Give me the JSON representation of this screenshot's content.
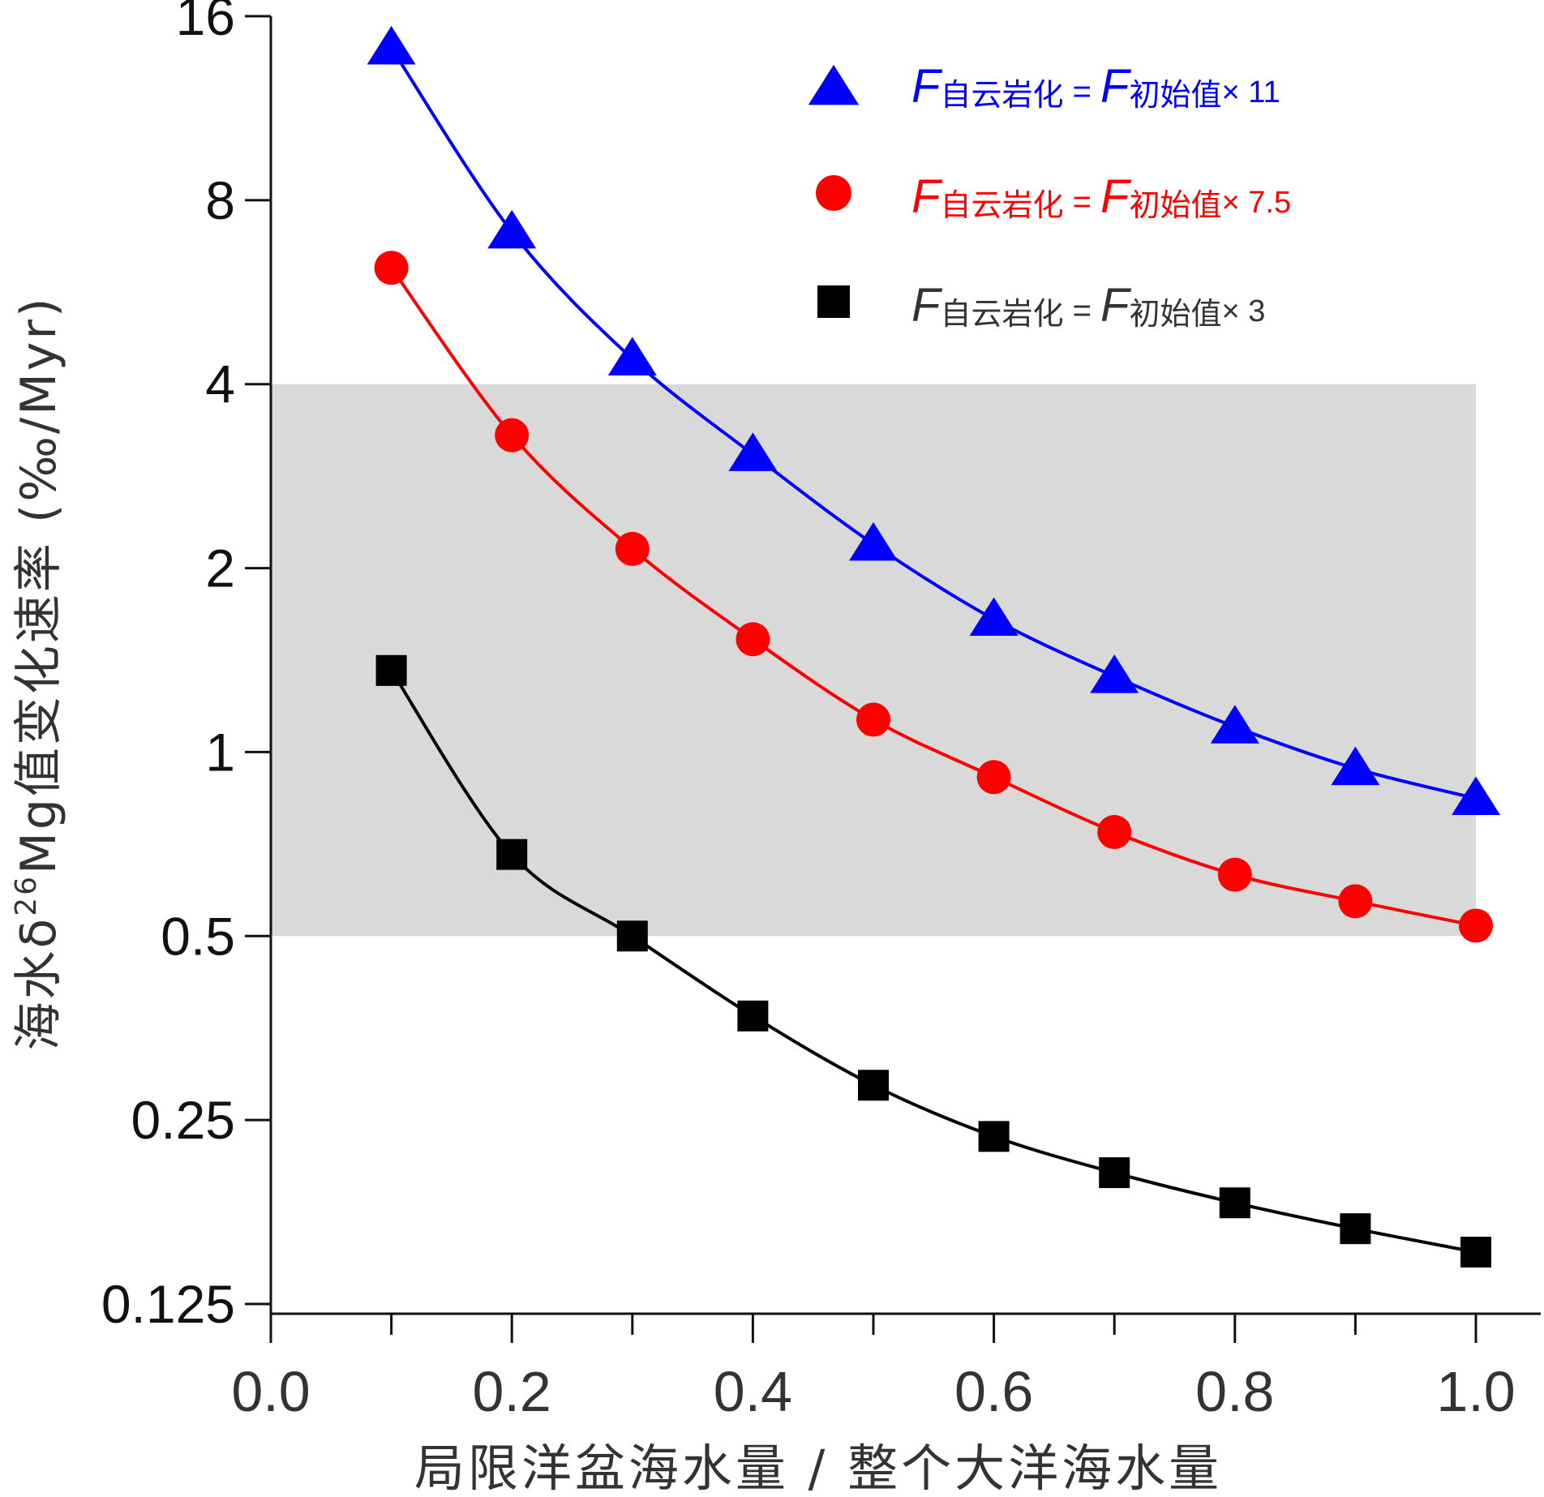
{
  "chart_data": {
    "type": "line",
    "title": "",
    "xlabel": "局限洋盆海水量 / 整个大洋海水量",
    "ylabel": {
      "prefix": "海水δ",
      "superscript": "26",
      "suffix": "Mg值变化速率 (‰/Myr)"
    },
    "x_scale": "linear",
    "y_scale": "log2",
    "xlim": [
      0.0,
      1.07
    ],
    "ylim": [
      0.125,
      16
    ],
    "x_ticks": [
      "0.0",
      "0.2",
      "0.4",
      "0.6",
      "0.8",
      "1.0"
    ],
    "x_tick_values": [
      0.0,
      0.2,
      0.4,
      0.6,
      0.8,
      1.0
    ],
    "y_ticks": [
      "0.125",
      "0.25",
      "0.5",
      "1",
      "2",
      "4",
      "8",
      "16"
    ],
    "y_tick_values": [
      0.125,
      0.25,
      0.5,
      1,
      2,
      4,
      8,
      16
    ],
    "shaded_band": {
      "y_range": [
        0.5,
        4
      ],
      "x_range": [
        0.0,
        1.0
      ],
      "color": "#d9d9d9"
    },
    "legend_position": "top-right",
    "x": [
      0.1,
      0.2,
      0.3,
      0.4,
      0.5,
      0.6,
      0.7,
      0.8,
      0.9,
      1.0
    ],
    "series": [
      {
        "key": "triangle",
        "marker": "triangle",
        "color": "#0000ff",
        "legend": {
          "F1": "F",
          "sub1": "自云岩化",
          "eq": " = ",
          "F2": "F",
          "sub2": "初始值",
          "mult": "× 11"
        },
        "values": [
          14.2,
          7.1,
          4.4,
          3.07,
          2.19,
          1.65,
          1.33,
          1.1,
          0.94,
          0.84
        ]
      },
      {
        "key": "circle",
        "marker": "circle",
        "color": "#ff0000",
        "legend": {
          "F1": "F",
          "sub1": "自云岩化",
          "eq": " = ",
          "F2": "F",
          "sub2": "初始值",
          "mult": "× 7.5"
        },
        "values": [
          6.2,
          3.3,
          2.15,
          1.53,
          1.13,
          0.91,
          0.74,
          0.63,
          0.57,
          0.52
        ]
      },
      {
        "key": "square",
        "marker": "square",
        "color": "#000000",
        "legend_color": "#333333",
        "legend": {
          "F1": "F",
          "sub1": "自云岩化",
          "eq": " = ",
          "F2": "F",
          "sub2": "初始值",
          "mult": "× 3"
        },
        "values": [
          1.36,
          0.68,
          0.5,
          0.37,
          0.285,
          0.235,
          0.205,
          0.183,
          0.166,
          0.152
        ]
      }
    ]
  }
}
